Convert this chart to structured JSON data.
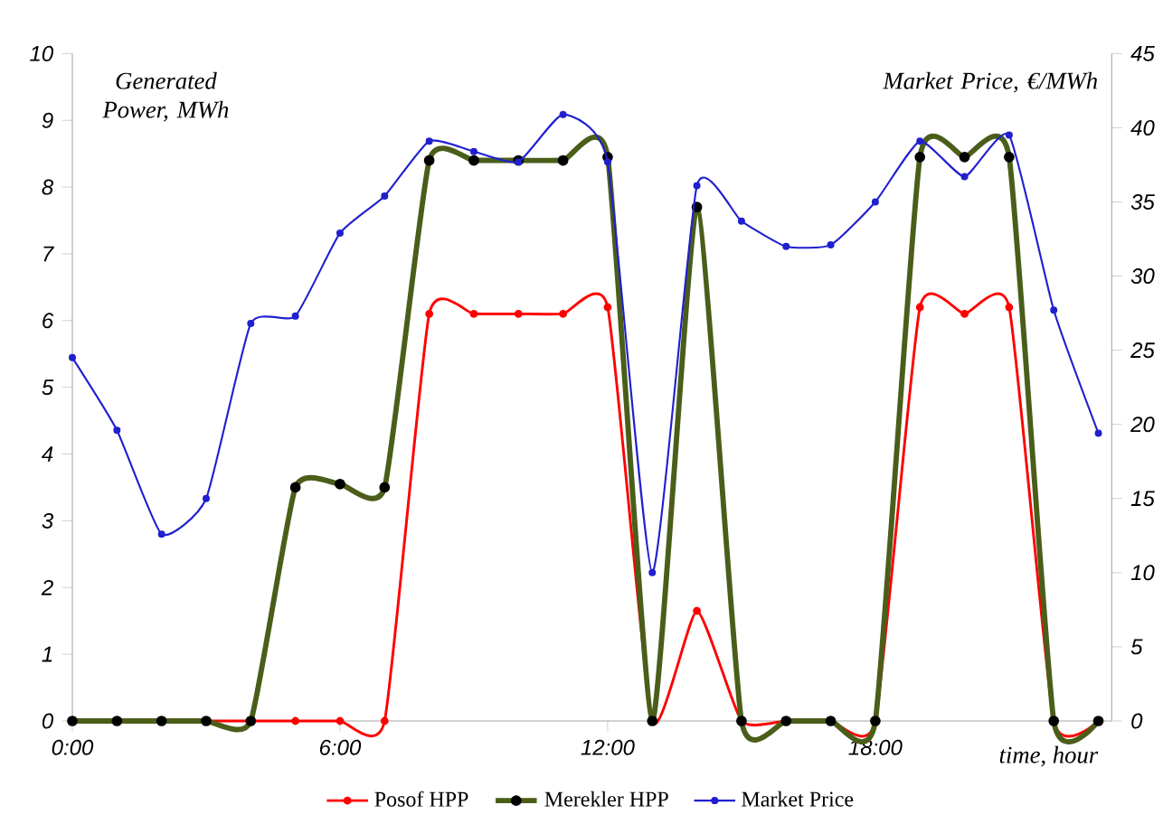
{
  "chart_data": {
    "type": "line",
    "xlabel": "time, hour",
    "ylabel": "Generated Power, MWh",
    "y2label": "Market Price, €/MWh",
    "x": [
      0,
      1,
      2,
      3,
      4,
      5,
      6,
      7,
      8,
      9,
      10,
      11,
      12,
      13,
      14,
      15,
      16,
      17,
      18,
      19,
      20,
      21,
      22,
      23
    ],
    "series": [
      {
        "name": "Posof HPP",
        "color": "#ff0000",
        "values": [
          null,
          null,
          null,
          0,
          0,
          0,
          0,
          0,
          6.1,
          6.1,
          6.1,
          6.1,
          6.2,
          0,
          1.65,
          0,
          0,
          0,
          0,
          6.2,
          6.1,
          6.2,
          0,
          0
        ]
      },
      {
        "name": "Merekler HPP",
        "color": "#4a5e1a",
        "values": [
          0,
          0,
          0,
          0,
          0,
          3.5,
          3.55,
          3.5,
          8.4,
          8.4,
          8.4,
          8.4,
          8.45,
          0,
          7.7,
          0,
          0,
          0,
          0,
          8.45,
          8.45,
          8.45,
          0,
          0
        ]
      },
      {
        "name": "Market Price",
        "color": "#2020d0",
        "axis": "y2",
        "values": [
          24.5,
          19.6,
          12.6,
          15.0,
          26.8,
          27.3,
          32.9,
          35.4,
          39.1,
          38.4,
          37.7,
          40.9,
          37.7,
          10.0,
          36.1,
          33.7,
          32.0,
          32.1,
          35.0,
          39.1,
          36.7,
          39.5,
          27.7,
          19.4
        ]
      }
    ],
    "xlim": [
      0,
      23.3
    ],
    "xticks": [
      {
        "value": 0,
        "label": "0:00"
      },
      {
        "value": 6,
        "label": "6:00"
      },
      {
        "value": 12,
        "label": "12:00"
      },
      {
        "value": 18,
        "label": "18:00"
      }
    ],
    "ylim": [
      0,
      10
    ],
    "yticks": [
      0,
      1,
      2,
      3,
      4,
      5,
      6,
      7,
      8,
      9,
      10
    ],
    "y2lim": [
      0,
      45
    ],
    "y2ticks": [
      0,
      5,
      10,
      15,
      20,
      25,
      30,
      35,
      40,
      45
    ],
    "legend": "bottom",
    "grid": false,
    "marker": "circle",
    "line_style": "solid"
  }
}
